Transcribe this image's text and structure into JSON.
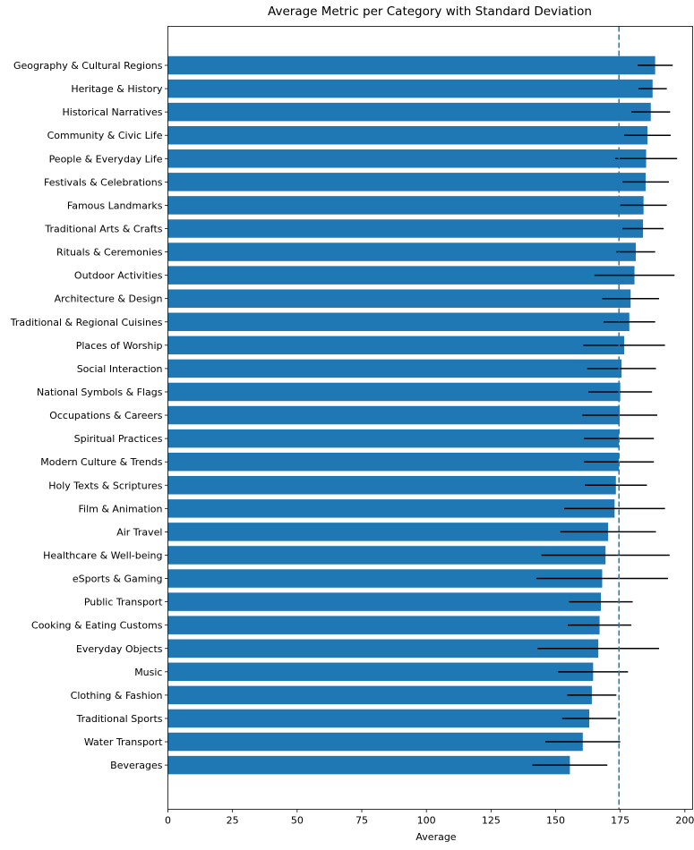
{
  "chart_data": {
    "type": "bar",
    "orientation": "horizontal",
    "title": "Average Metric per Category with Standard Deviation",
    "xlabel": "Average",
    "ylabel": "",
    "xlim": [
      0,
      203
    ],
    "xticks": [
      0,
      25,
      50,
      75,
      100,
      125,
      150,
      175,
      200
    ],
    "reference_line": {
      "value": 174.5,
      "style": "dashed",
      "color": "#1f77b4"
    },
    "bar_color": "#1f77b4",
    "errorbar_color": "#000000",
    "grid": false,
    "legend": "none",
    "categories": [
      "Geography & Cultural Regions",
      "Heritage & History",
      "Historical Narratives",
      "Community & Civic Life",
      "People & Everyday Life",
      "Festivals & Celebrations",
      "Famous Landmarks",
      "Traditional Arts & Crafts",
      "Rituals & Ceremonies",
      "Outdoor Activities",
      "Architecture & Design",
      "Traditional & Regional Cuisines",
      "Places of Worship",
      "Social Interaction",
      "National Symbols & Flags",
      "Occupations & Careers",
      "Spiritual Practices",
      "Modern Culture & Trends",
      "Holy Texts & Scriptures",
      "Film & Animation",
      "Air Travel",
      "Healthcare & Well-being",
      "eSports & Gaming",
      "Public Transport",
      "Cooking & Eating Customs",
      "Everyday Objects",
      "Music",
      "Clothing & Fashion",
      "Traditional Sports",
      "Water Transport",
      "Beverages"
    ],
    "values": [
      188.5,
      187.5,
      186.8,
      185.5,
      185.0,
      184.8,
      184.0,
      183.8,
      181.0,
      180.5,
      179.0,
      178.5,
      176.5,
      175.5,
      175.0,
      174.8,
      174.5,
      174.5,
      173.3,
      172.8,
      170.3,
      169.3,
      168.0,
      167.5,
      167.0,
      166.5,
      164.5,
      164.0,
      163.0,
      160.5,
      155.5
    ],
    "std": [
      6.8,
      5.5,
      7.5,
      9.0,
      12.0,
      9.0,
      9.0,
      8.0,
      7.5,
      15.5,
      11.0,
      10.0,
      15.8,
      13.3,
      12.3,
      14.5,
      13.5,
      13.5,
      12.0,
      19.5,
      18.5,
      24.8,
      25.5,
      12.3,
      12.3,
      23.5,
      13.5,
      9.5,
      10.5,
      14.5,
      14.5
    ]
  }
}
